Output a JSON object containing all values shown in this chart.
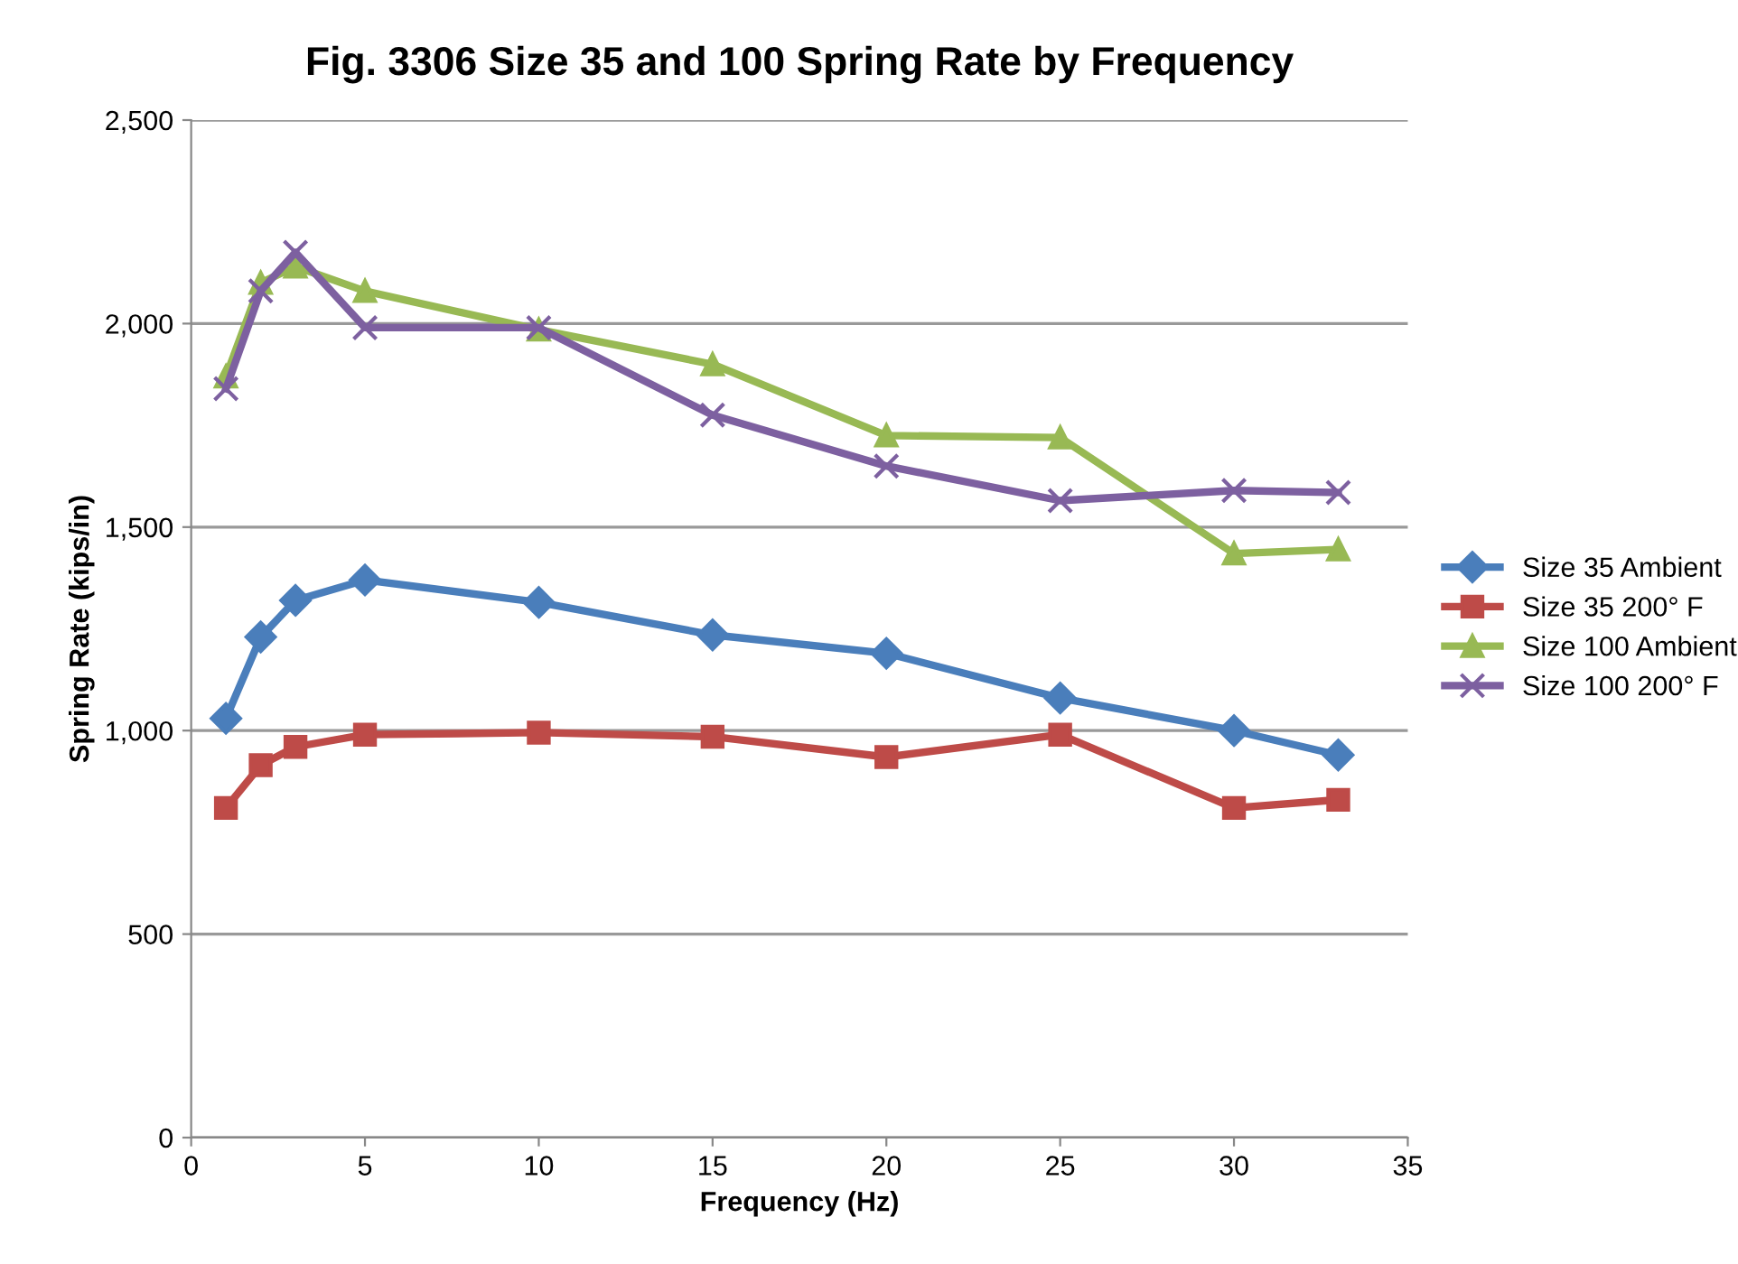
{
  "chart_data": {
    "type": "line",
    "title": "Fig. 3306 Size 35 and 100 Spring Rate by Frequency",
    "xlabel": "Frequency (Hz)",
    "ylabel": "Spring Rate (kips/in)",
    "x": [
      1,
      2,
      3,
      5,
      10,
      15,
      20,
      25,
      30,
      33
    ],
    "series": [
      {
        "name": "Size 35 Ambient",
        "color": "#4a7ebb",
        "marker": "diamond",
        "values": [
          1030,
          1230,
          1320,
          1370,
          1315,
          1235,
          1190,
          1080,
          1000,
          940
        ]
      },
      {
        "name": "Size 35 200° F",
        "color": "#be4b48",
        "marker": "square",
        "values": [
          810,
          915,
          960,
          990,
          995,
          985,
          935,
          990,
          810,
          830
        ]
      },
      {
        "name": "Size 100 Ambient",
        "color": "#98b954",
        "marker": "triangle",
        "values": [
          1870,
          2100,
          2140,
          2080,
          1985,
          1900,
          1725,
          1720,
          1435,
          1445
        ]
      },
      {
        "name": "Size 100 200° F",
        "color": "#7d60a0",
        "marker": "cross",
        "values": [
          1840,
          2080,
          2175,
          1990,
          1990,
          1775,
          1650,
          1565,
          1590,
          1585
        ]
      }
    ],
    "xlim": [
      0,
      35
    ],
    "xticks": [
      0,
      5,
      10,
      15,
      20,
      25,
      30,
      35
    ],
    "ylim": [
      0,
      2500
    ],
    "yticks": [
      {
        "value": 0,
        "label": "0"
      },
      {
        "value": 500,
        "label": "500"
      },
      {
        "value": 1000,
        "label": "1,000"
      },
      {
        "value": 1500,
        "label": "1,500"
      },
      {
        "value": 2000,
        "label": "2,000"
      },
      {
        "value": 2500,
        "label": "2,500"
      }
    ],
    "grid": "y",
    "legend": "right",
    "line_style": "solid"
  }
}
